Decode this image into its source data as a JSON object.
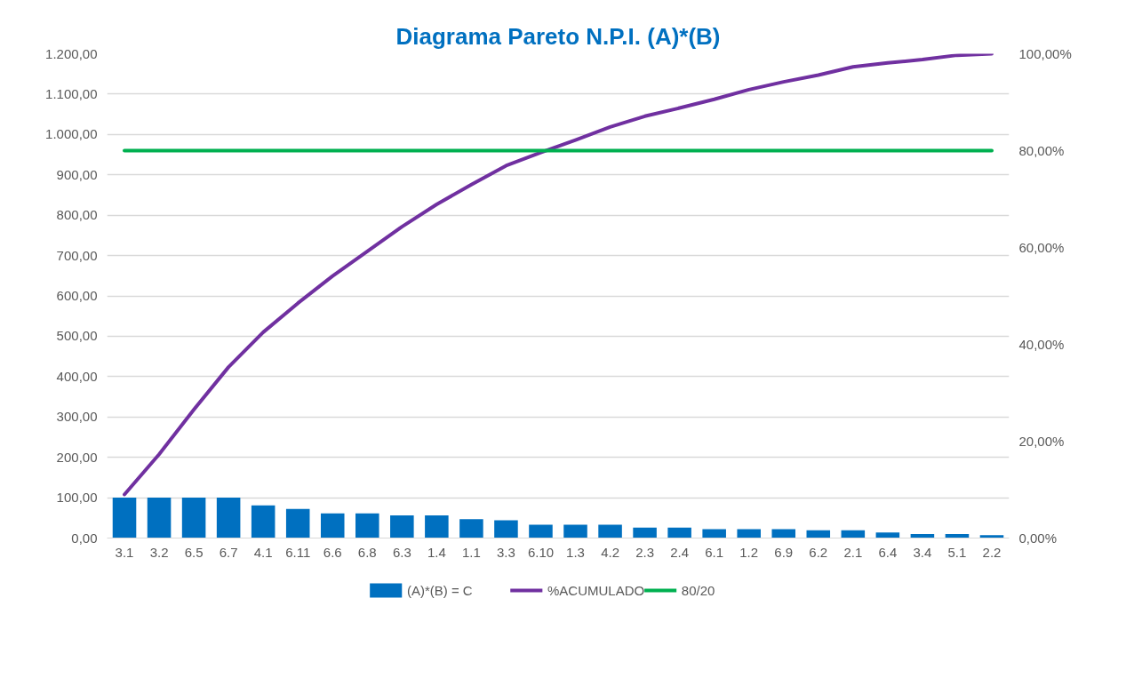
{
  "chart_data": {
    "type": "bar",
    "title": "Diagrama Pareto N.P.I. (A)*(B)",
    "categories": [
      "3.1",
      "3.2",
      "6.5",
      "6.7",
      "4.1",
      "6.11",
      "6.6",
      "6.8",
      "6.3",
      "1.4",
      "1.1",
      "3.3",
      "6.10",
      "1.3",
      "4.2",
      "2.3",
      "2.4",
      "6.1",
      "1.2",
      "6.9",
      "6.2",
      "2.1",
      "6.4",
      "3.4",
      "5.1",
      "2.2"
    ],
    "series": [
      {
        "name": "(A)*(B) = C",
        "color": "#0070c0",
        "values": [
          100,
          100,
          100,
          100,
          81,
          72,
          61,
          61,
          56,
          56,
          47,
          44,
          33,
          33,
          33,
          26,
          26,
          22,
          22,
          22,
          19,
          19,
          14,
          10,
          10,
          7
        ]
      },
      {
        "name": "%ACUMULADO",
        "type": "line",
        "axis": "y2",
        "color": "#7030a0",
        "values": [
          9.0,
          17.3,
          26.5,
          35.3,
          42.5,
          48.5,
          54.1,
          59.2,
          64.3,
          68.9,
          73.0,
          76.9,
          79.6,
          82.2,
          84.9,
          87.1,
          88.8,
          90.6,
          92.6,
          94.2,
          95.6,
          97.3,
          98.1,
          98.8,
          99.7,
          100
        ]
      }
    ],
    "ref_lines": [
      {
        "axis": "y2",
        "value": 80,
        "label": "80/20",
        "color": "#00b050"
      }
    ],
    "ylim": [
      0,
      1200
    ],
    "yticks": [
      {
        "value": 0,
        "label": "0,00"
      },
      {
        "value": 100,
        "label": "100,00"
      },
      {
        "value": 200,
        "label": "200,00"
      },
      {
        "value": 300,
        "label": "300,00"
      },
      {
        "value": 400,
        "label": "400,00"
      },
      {
        "value": 500,
        "label": "500,00"
      },
      {
        "value": 600,
        "label": "600,00"
      },
      {
        "value": 700,
        "label": "700,00"
      },
      {
        "value": 800,
        "label": "800,00"
      },
      {
        "value": 900,
        "label": "900,00"
      },
      {
        "value": 1000,
        "label": "1.000,00"
      },
      {
        "value": 1100,
        "label": "1.100,00"
      },
      {
        "value": 1200,
        "label": "1.200,00"
      }
    ],
    "y2lim": [
      0,
      100
    ],
    "y2ticks": [
      {
        "value": 0,
        "label": "0,00%"
      },
      {
        "value": 20,
        "label": "20,00%"
      },
      {
        "value": 40,
        "label": "40,00%"
      },
      {
        "value": 60,
        "label": "60,00%"
      },
      {
        "value": 80,
        "label": "80,00%"
      },
      {
        "value": 100,
        "label": "100,00%"
      }
    ],
    "grid": "y",
    "legend": "bottom"
  }
}
